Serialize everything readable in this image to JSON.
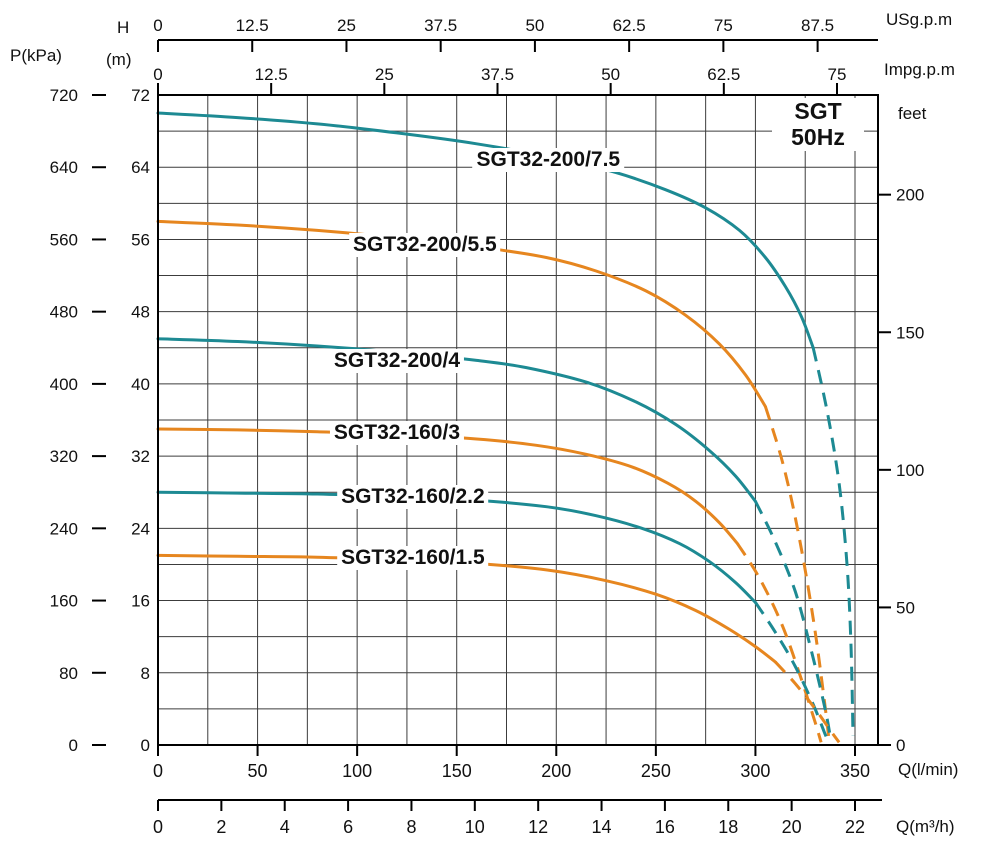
{
  "labels": {
    "p_kpa": "P(kPa)",
    "h": "H",
    "m": "(m)",
    "us_gpm": "USg.p.m",
    "imp_gpm": "Impg.p.m",
    "feet": "feet",
    "q_lmin": "Q(l/min)",
    "q_m3h": "Q(m³/h)",
    "sgt_line1": "SGT",
    "sgt_line2": "50Hz"
  },
  "colors": {
    "teal": "#1d8a93",
    "orange": "#e6861f",
    "grid": "#3c3c3c",
    "axis": "#000000"
  },
  "axes": {
    "us_gpm": {
      "label": "USg.p.m",
      "ticks": [
        0,
        12.5,
        25,
        37.5,
        50,
        62.5,
        75,
        87.5
      ]
    },
    "imp_gpm": {
      "label": "Impg.p.m",
      "ticks": [
        0,
        12.5,
        25,
        37.5,
        50,
        62.5,
        75
      ]
    },
    "p_kpa": {
      "label": "P(kPa)",
      "ticks": [
        0,
        80,
        160,
        240,
        320,
        400,
        480,
        560,
        640,
        720
      ]
    },
    "h_m": {
      "label": "H (m)",
      "ticks": [
        0,
        8,
        16,
        24,
        32,
        40,
        48,
        56,
        64,
        72
      ]
    },
    "feet": {
      "label": "feet",
      "ticks": [
        0,
        50,
        100,
        150,
        200
      ]
    },
    "q_lmin": {
      "label": "Q(l/min)",
      "ticks": [
        0,
        50,
        100,
        150,
        200,
        250,
        300,
        350
      ]
    },
    "q_m3h": {
      "label": "Q(m³/h)",
      "ticks": [
        0,
        2,
        4,
        6,
        8,
        10,
        12,
        14,
        16,
        18,
        20,
        22
      ]
    }
  },
  "chart_data": {
    "type": "line",
    "title": "SGT 50Hz pump performance curves",
    "xlabel": "Q(l/min)",
    "ylabel": "H(m)",
    "xlim": [
      0,
      360
    ],
    "ylim": [
      0,
      72
    ],
    "grid": {
      "x_step_lmin": 25,
      "y_step_m": 4
    },
    "legend_position": "labels-on-curves",
    "series": [
      {
        "name": "SGT32-200/7.5",
        "color": "teal",
        "label_xy": [
          196,
          64.8
        ],
        "solid": [
          [
            0,
            70
          ],
          [
            40,
            69.5
          ],
          [
            80,
            68.8
          ],
          [
            120,
            67.8
          ],
          [
            160,
            66.6
          ],
          [
            200,
            65
          ],
          [
            230,
            63.4
          ],
          [
            255,
            61.5
          ],
          [
            275,
            59.5
          ],
          [
            292,
            57
          ],
          [
            305,
            54
          ],
          [
            315,
            50.8
          ],
          [
            323,
            47.5
          ],
          [
            329,
            44
          ]
        ],
        "dashed": [
          [
            329,
            44
          ],
          [
            336,
            37
          ],
          [
            342,
            29
          ],
          [
            346,
            20
          ],
          [
            348,
            11
          ],
          [
            349,
            1
          ]
        ]
      },
      {
        "name": "SGT32-200/5.5",
        "color": "orange",
        "label_xy": [
          134,
          55.4
        ],
        "solid": [
          [
            0,
            58
          ],
          [
            40,
            57.6
          ],
          [
            80,
            57
          ],
          [
            120,
            56.2
          ],
          [
            160,
            55.2
          ],
          [
            195,
            54
          ],
          [
            220,
            52.5
          ],
          [
            245,
            50.3
          ],
          [
            265,
            47.6
          ],
          [
            282,
            44.4
          ],
          [
            295,
            41
          ],
          [
            305,
            37.5
          ]
        ],
        "dashed": [
          [
            305,
            37.5
          ],
          [
            314,
            31
          ],
          [
            322,
            23
          ],
          [
            329,
            14
          ],
          [
            334,
            6
          ],
          [
            337,
            0.5
          ]
        ]
      },
      {
        "name": "SGT32-200/4",
        "color": "teal",
        "label_xy": [
          120,
          42.5
        ],
        "solid": [
          [
            0,
            45
          ],
          [
            40,
            44.7
          ],
          [
            80,
            44.2
          ],
          [
            120,
            43.5
          ],
          [
            160,
            42.6
          ],
          [
            185,
            41.8
          ],
          [
            215,
            40.2
          ],
          [
            240,
            38
          ],
          [
            260,
            35.5
          ],
          [
            277,
            32.6
          ],
          [
            290,
            29.8
          ],
          [
            300,
            27
          ]
        ],
        "dashed": [
          [
            300,
            27
          ],
          [
            310,
            22.5
          ],
          [
            320,
            17
          ],
          [
            328,
            10.5
          ],
          [
            335,
            4
          ],
          [
            338,
            0.4
          ]
        ]
      },
      {
        "name": "SGT32-160/3",
        "color": "orange",
        "label_xy": [
          120,
          34.6
        ],
        "solid": [
          [
            0,
            35
          ],
          [
            40,
            34.9
          ],
          [
            80,
            34.7
          ],
          [
            120,
            34.4
          ],
          [
            160,
            33.9
          ],
          [
            190,
            33.2
          ],
          [
            215,
            32.2
          ],
          [
            238,
            30.8
          ],
          [
            256,
            29
          ],
          [
            270,
            27
          ],
          [
            282,
            24.6
          ],
          [
            291,
            22.3
          ]
        ],
        "dashed": [
          [
            291,
            22.3
          ],
          [
            302,
            18.5
          ],
          [
            313,
            13.5
          ],
          [
            322,
            8
          ],
          [
            330,
            2.5
          ],
          [
            333,
            0.3
          ]
        ]
      },
      {
        "name": "SGT32-160/2.2",
        "color": "teal",
        "label_xy": [
          128,
          27.5
        ],
        "solid": [
          [
            0,
            28
          ],
          [
            40,
            27.9
          ],
          [
            80,
            27.8
          ],
          [
            120,
            27.5
          ],
          [
            160,
            27.1
          ],
          [
            195,
            26.4
          ],
          [
            220,
            25.4
          ],
          [
            243,
            24
          ],
          [
            262,
            22.3
          ],
          [
            277,
            20.3
          ],
          [
            290,
            18
          ],
          [
            300,
            15.8
          ]
        ],
        "dashed": [
          [
            300,
            15.8
          ],
          [
            310,
            12.5
          ],
          [
            320,
            8.7
          ],
          [
            329,
            4.5
          ],
          [
            335,
            1.2
          ],
          [
            337,
            0.3
          ]
        ]
      },
      {
        "name": "SGT32-160/1.5",
        "color": "orange",
        "label_xy": [
          128,
          20.7
        ],
        "solid": [
          [
            0,
            21
          ],
          [
            40,
            20.9
          ],
          [
            80,
            20.8
          ],
          [
            120,
            20.5
          ],
          [
            160,
            20.1
          ],
          [
            195,
            19.4
          ],
          [
            225,
            18.2
          ],
          [
            250,
            16.7
          ],
          [
            270,
            14.9
          ],
          [
            287,
            12.8
          ],
          [
            300,
            10.9
          ],
          [
            310,
            9.2
          ]
        ],
        "dashed": [
          [
            310,
            9.2
          ],
          [
            320,
            6.8
          ],
          [
            330,
            4
          ],
          [
            338,
            1.5
          ],
          [
            342,
            0.3
          ]
        ]
      }
    ],
    "unit_conversions": {
      "us_gpm_to_lmin": 3.7854,
      "imp_gpm_to_lmin": 4.5461,
      "feet_to_m": 0.3048,
      "m3h_to_lmin": 16.667
    }
  }
}
